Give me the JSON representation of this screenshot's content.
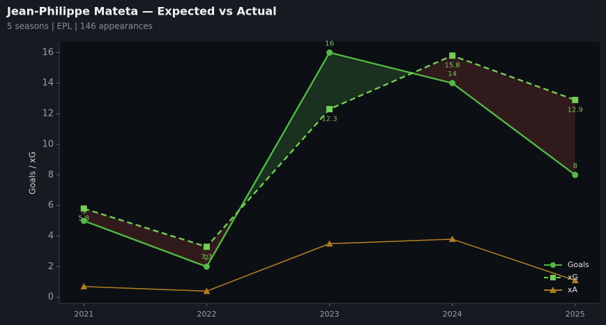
{
  "chart_data": {
    "type": "line",
    "title": "Jean-Philippe Mateta — Expected vs Actual",
    "subtitle": "5 seasons | EPL | 146 appearances",
    "y_label": "Goals / xG",
    "x": [
      2021,
      2022,
      2023,
      2024,
      2025
    ],
    "xlim": [
      2020.8,
      2025.2
    ],
    "xticks": [
      2021,
      2022,
      2023,
      2024,
      2025
    ],
    "ylim": [
      -0.4,
      16.7
    ],
    "yticks": [
      0,
      2,
      4,
      6,
      8,
      10,
      12,
      14,
      16
    ],
    "legend": "lower right",
    "series": [
      {
        "name": "Goals",
        "color": "#52b846",
        "values": [
          5,
          2,
          16,
          14,
          8
        ]
      },
      {
        "name": "xG",
        "color": "#74cc58",
        "values": [
          5.8,
          3.3,
          12.3,
          15.8,
          12.9
        ]
      },
      {
        "name": "xA",
        "color": "#b07d22",
        "values": [
          0.7,
          0.4,
          3.5,
          3.8,
          1.1
        ]
      }
    ]
  }
}
